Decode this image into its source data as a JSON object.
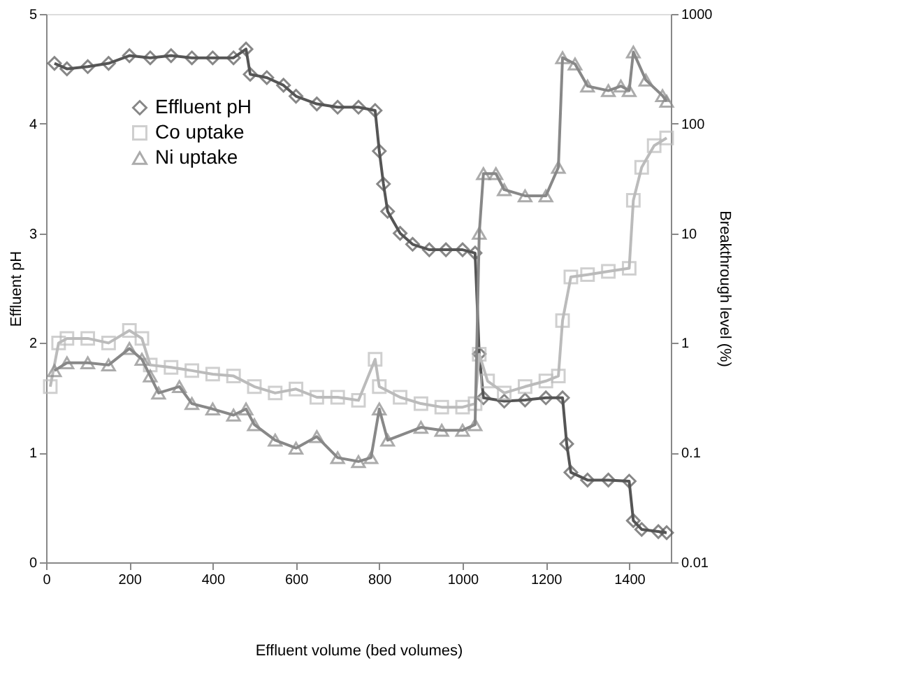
{
  "chart_data": {
    "type": "line",
    "xlabel": "Effluent volume (bed volumes)",
    "ylabel": "Effluent pH",
    "y2label": "Breakthrough level (%)",
    "xlim": [
      0,
      1500
    ],
    "xticks": [
      0,
      200,
      400,
      600,
      800,
      1000,
      1200,
      1400
    ],
    "ylim": [
      0,
      5
    ],
    "yticks": [
      0,
      1,
      2,
      3,
      4,
      5
    ],
    "y2lim": [
      0.01,
      1000
    ],
    "y2ticks": [
      0.01,
      0.1,
      1,
      10,
      100,
      1000
    ],
    "log": "y2",
    "grid": false,
    "legend": "top left",
    "line_style": "solid",
    "series": [
      {
        "name": "Effluent pH",
        "color": "#555555",
        "marker": "diamond",
        "axis": "y",
        "x": [
          20,
          50,
          100,
          150,
          200,
          250,
          300,
          350,
          400,
          450,
          480,
          490,
          530,
          570,
          600,
          650,
          700,
          750,
          790,
          800,
          810,
          820,
          850,
          880,
          920,
          960,
          1000,
          1030,
          1040,
          1050,
          1100,
          1150,
          1200,
          1240,
          1250,
          1260,
          1300,
          1350,
          1400,
          1410,
          1430,
          1470,
          1490
        ],
        "values": [
          4.55,
          4.5,
          4.52,
          4.55,
          4.62,
          4.6,
          4.62,
          4.6,
          4.6,
          4.6,
          4.68,
          4.45,
          4.42,
          4.35,
          4.25,
          4.18,
          4.15,
          4.15,
          4.12,
          3.75,
          3.45,
          3.2,
          3.0,
          2.9,
          2.85,
          2.85,
          2.85,
          2.82,
          1.9,
          1.5,
          1.47,
          1.48,
          1.5,
          1.5,
          1.08,
          0.82,
          0.75,
          0.75,
          0.74,
          0.38,
          0.3,
          0.28,
          0.27
        ]
      },
      {
        "name": "Co uptake",
        "color": "#bbbbbb",
        "marker": "square",
        "axis": "y2",
        "x": [
          10,
          30,
          50,
          100,
          150,
          200,
          230,
          250,
          300,
          350,
          400,
          450,
          500,
          550,
          600,
          650,
          700,
          750,
          790,
          800,
          850,
          900,
          950,
          1000,
          1030,
          1040,
          1060,
          1100,
          1150,
          1200,
          1230,
          1240,
          1260,
          1300,
          1350,
          1400,
          1410,
          1430,
          1460,
          1490
        ],
        "values": [
          0.4,
          1.0,
          1.1,
          1.1,
          1.0,
          1.3,
          1.1,
          0.63,
          0.6,
          0.56,
          0.52,
          0.5,
          0.4,
          0.35,
          0.38,
          0.32,
          0.32,
          0.3,
          0.71,
          0.4,
          0.32,
          0.28,
          0.26,
          0.26,
          0.28,
          0.79,
          0.45,
          0.35,
          0.4,
          0.45,
          0.5,
          1.6,
          4.0,
          4.2,
          4.5,
          4.8,
          20,
          40,
          63,
          74
        ]
      },
      {
        "name": "Ni uptake",
        "color": "#888888",
        "marker": "triangle",
        "axis": "y2",
        "x": [
          20,
          50,
          100,
          150,
          200,
          230,
          250,
          270,
          320,
          350,
          400,
          450,
          480,
          500,
          550,
          600,
          650,
          700,
          750,
          780,
          800,
          820,
          900,
          950,
          1000,
          1030,
          1040,
          1050,
          1080,
          1100,
          1150,
          1200,
          1230,
          1240,
          1270,
          1300,
          1350,
          1380,
          1400,
          1410,
          1440,
          1480,
          1490
        ],
        "values": [
          0.56,
          0.66,
          0.66,
          0.63,
          0.89,
          0.71,
          0.5,
          0.35,
          0.4,
          0.28,
          0.25,
          0.22,
          0.25,
          0.18,
          0.13,
          0.11,
          0.14,
          0.09,
          0.083,
          0.09,
          0.25,
          0.13,
          0.17,
          0.16,
          0.16,
          0.18,
          10,
          35,
          35,
          25,
          22,
          22,
          40,
          400,
          350,
          220,
          200,
          220,
          200,
          450,
          250,
          180,
          160
        ]
      }
    ]
  }
}
